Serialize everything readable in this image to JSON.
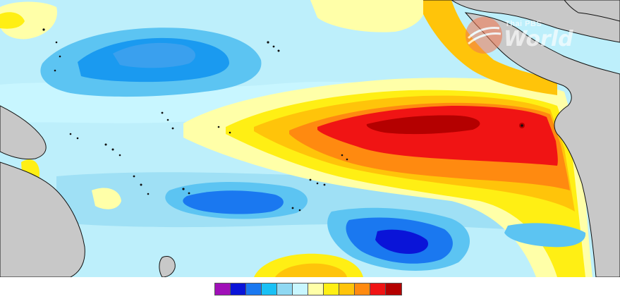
{
  "map": {
    "colors": {
      "ocean_base": "#bdeffb",
      "land": "#c8c8c8",
      "coast": "#111111"
    }
  },
  "legend": {
    "swatches": [
      "#a010b8",
      "#0a14d8",
      "#1a78f0",
      "#19c0f5",
      "#8fd8f2",
      "#c8f6ff",
      "#ffffa8",
      "#ffef14",
      "#ffc40a",
      "#ff8a10",
      "#f01414",
      "#b40000"
    ]
  },
  "watermark": {
    "brand_small": "Thai PBS",
    "brand_large": "World",
    "icon": "thaipbs-logo-icon"
  }
}
